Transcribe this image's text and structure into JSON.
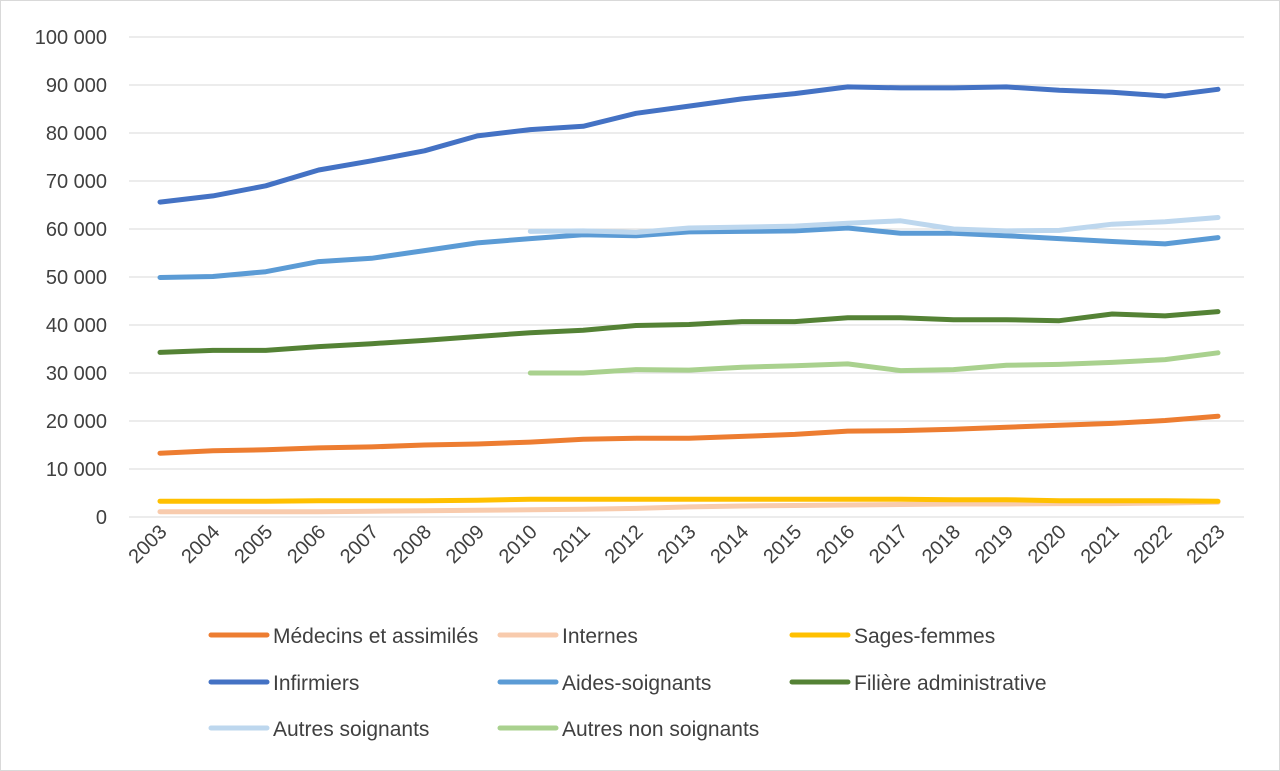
{
  "chart_data": {
    "type": "line",
    "title": "",
    "xlabel": "",
    "ylabel": "",
    "x": [
      "2003",
      "2004",
      "2005",
      "2006",
      "2007",
      "2008",
      "2009",
      "2010",
      "2011",
      "2012",
      "2013",
      "2014",
      "2015",
      "2016",
      "2017",
      "2018",
      "2019",
      "2020",
      "2021",
      "2022",
      "2023"
    ],
    "ylim": [
      0,
      100000
    ],
    "y_ticks": [
      0,
      10000,
      20000,
      30000,
      40000,
      50000,
      60000,
      70000,
      80000,
      90000,
      100000
    ],
    "y_tick_labels": [
      "0",
      "10 000",
      "20 000",
      "30 000",
      "40 000",
      "50 000",
      "60 000",
      "70 000",
      "80 000",
      "90 000",
      "100 000"
    ],
    "grid": "horizontal",
    "legend_position": "bottom",
    "series": [
      {
        "name": "Médecins et assimilés",
        "color": "#ed7d31",
        "values": [
          13300,
          13800,
          14000,
          14400,
          14600,
          15000,
          15200,
          15600,
          16200,
          16400,
          16400,
          16800,
          17200,
          17900,
          18000,
          18300,
          18700,
          19100,
          19500,
          20100,
          21000
        ]
      },
      {
        "name": "Internes",
        "color": "#f8cbad",
        "values": [
          1100,
          1100,
          1100,
          1100,
          1200,
          1300,
          1400,
          1500,
          1600,
          1800,
          2100,
          2300,
          2400,
          2500,
          2600,
          2700,
          2700,
          2800,
          2800,
          2900,
          3100
        ]
      },
      {
        "name": "Sages-femmes",
        "color": "#ffc000",
        "values": [
          3300,
          3300,
          3300,
          3400,
          3400,
          3400,
          3500,
          3700,
          3700,
          3700,
          3700,
          3700,
          3700,
          3700,
          3700,
          3600,
          3600,
          3400,
          3400,
          3400,
          3300
        ]
      },
      {
        "name": "Infirmiers",
        "color": "#4472c4",
        "values": [
          65600,
          66900,
          69000,
          72300,
          74200,
          76300,
          79400,
          80700,
          81400,
          84100,
          85600,
          87100,
          88200,
          89600,
          89400,
          89400,
          89600,
          88900,
          88500,
          87700,
          89100
        ]
      },
      {
        "name": "Aides-soignants",
        "color": "#5b9bd5",
        "values": [
          49900,
          50100,
          51100,
          53200,
          53900,
          55500,
          57100,
          58000,
          58800,
          58600,
          59400,
          59500,
          59600,
          60200,
          59100,
          59100,
          58600,
          58000,
          57400,
          56900,
          58200
        ]
      },
      {
        "name": "Filière administrative",
        "color": "#548235",
        "values": [
          34300,
          34700,
          34700,
          35500,
          36100,
          36800,
          37600,
          38400,
          38900,
          39900,
          40100,
          40700,
          40700,
          41500,
          41500,
          41100,
          41100,
          40900,
          42300,
          41900,
          42800
        ]
      },
      {
        "name": "Autres soignants",
        "color": "#bdd7ee",
        "values": [
          null,
          null,
          null,
          null,
          null,
          null,
          null,
          59500,
          59600,
          59300,
          60200,
          60400,
          60600,
          61200,
          61700,
          60000,
          59600,
          59700,
          61000,
          61500,
          62400
        ]
      },
      {
        "name": "Autres non soignants",
        "color": "#a9d18e",
        "values": [
          null,
          null,
          null,
          null,
          null,
          null,
          null,
          30000,
          30000,
          30700,
          30600,
          31200,
          31500,
          31900,
          30500,
          30700,
          31600,
          31800,
          32200,
          32800,
          34200
        ]
      }
    ]
  }
}
